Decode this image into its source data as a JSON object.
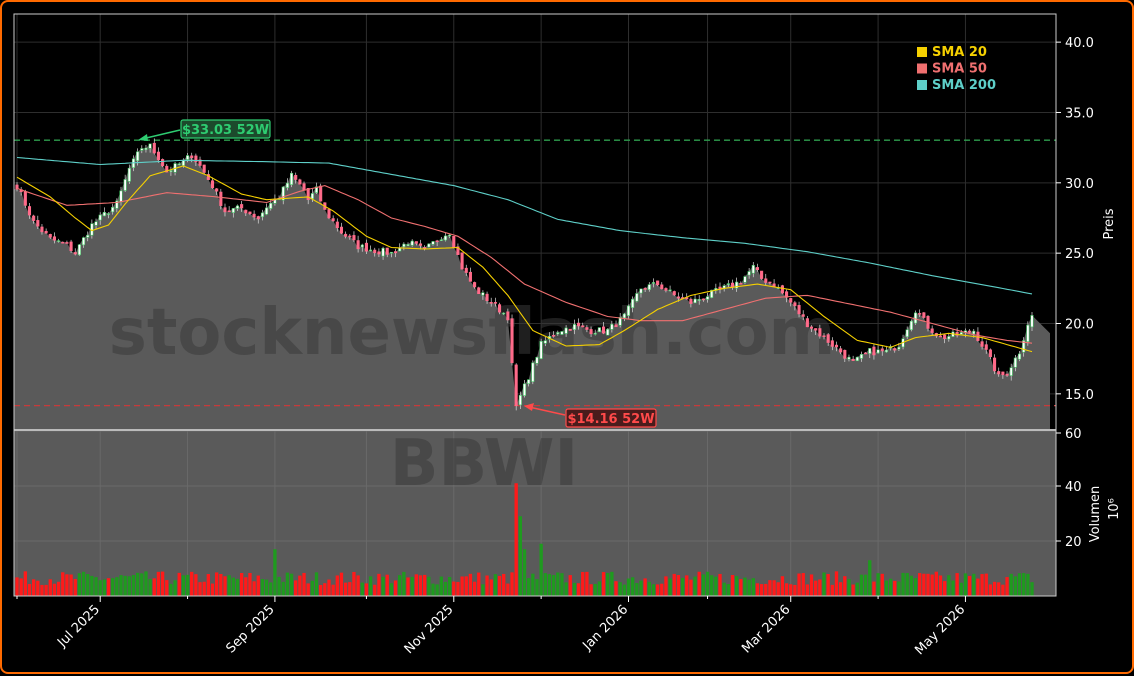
{
  "chart_data": {
    "type": "candlestick",
    "watermark": [
      "stocknewsflash.com",
      "BBWI"
    ],
    "price_axis": {
      "label": "Preis",
      "ylim": [
        12.5,
        42.0
      ],
      "ticks": [
        "40.0",
        "35.0",
        "30.0",
        "25.0",
        "20.0",
        "15.0"
      ]
    },
    "volume_axis": {
      "label": "Volumen",
      "unit": "10⁶",
      "ylim": [
        0,
        60
      ],
      "ticks": [
        "60",
        "40",
        "20"
      ]
    },
    "x_ticks": [
      "Jul 2025",
      "Sep 2025",
      "Nov 2025",
      "Jan 2026",
      "Mar 2026",
      "May 2026"
    ],
    "legend": [
      {
        "name": "SMA 20",
        "color": "#f5d000"
      },
      {
        "name": "SMA 50",
        "color": "#f07070"
      },
      {
        "name": "SMA 200",
        "color": "#5ecfc8"
      }
    ],
    "annotations": {
      "high": {
        "label": "$33.03 52W",
        "value": 33.03,
        "color": "#2ecc71"
      },
      "low": {
        "label": "$14.16 52W",
        "value": 14.16,
        "color": "#ff4a4a"
      }
    },
    "n_bars": 245,
    "price_keypoints": [
      [
        0,
        29.8
      ],
      [
        4,
        27.2
      ],
      [
        8,
        26.0
      ],
      [
        12,
        25.6
      ],
      [
        14,
        25.0
      ],
      [
        18,
        27.0
      ],
      [
        22,
        28.0
      ],
      [
        24,
        28.5
      ],
      [
        27,
        31.0
      ],
      [
        30,
        32.5
      ],
      [
        32,
        32.6
      ],
      [
        34,
        31.8
      ],
      [
        36,
        30.8
      ],
      [
        40,
        31.5
      ],
      [
        42,
        32.0
      ],
      [
        44,
        31.2
      ],
      [
        47,
        29.8
      ],
      [
        50,
        28.0
      ],
      [
        54,
        28.2
      ],
      [
        58,
        27.5
      ],
      [
        60,
        28.3
      ],
      [
        63,
        29.0
      ],
      [
        66,
        30.5
      ],
      [
        69,
        29.5
      ],
      [
        70,
        28.8
      ],
      [
        72,
        29.5
      ],
      [
        74,
        28.0
      ],
      [
        78,
        26.5
      ],
      [
        82,
        25.5
      ],
      [
        86,
        25.2
      ],
      [
        90,
        25.0
      ],
      [
        94,
        25.8
      ],
      [
        98,
        25.2
      ],
      [
        102,
        26.2
      ],
      [
        104,
        26.5
      ],
      [
        107,
        24.0
      ],
      [
        110,
        22.5
      ],
      [
        114,
        21.5
      ],
      [
        118,
        20.5
      ],
      [
        119,
        17.0
      ],
      [
        120,
        14.16
      ],
      [
        122,
        15.5
      ],
      [
        124,
        17.0
      ],
      [
        126,
        18.5
      ],
      [
        130,
        19.5
      ],
      [
        134,
        19.8
      ],
      [
        138,
        19.5
      ],
      [
        142,
        19.5
      ],
      [
        146,
        20.5
      ],
      [
        150,
        22.5
      ],
      [
        154,
        22.8
      ],
      [
        158,
        22.0
      ],
      [
        162,
        21.5
      ],
      [
        166,
        22.0
      ],
      [
        170,
        22.5
      ],
      [
        174,
        23.0
      ],
      [
        177,
        24.0
      ],
      [
        179,
        23.2
      ],
      [
        182,
        22.8
      ],
      [
        186,
        21.5
      ],
      [
        190,
        20.0
      ],
      [
        194,
        19.0
      ],
      [
        198,
        18.0
      ],
      [
        201,
        17.2
      ],
      [
        205,
        18.0
      ],
      [
        209,
        18.0
      ],
      [
        212,
        18.5
      ],
      [
        216,
        21.0
      ],
      [
        219,
        19.8
      ],
      [
        222,
        19.0
      ],
      [
        226,
        19.2
      ],
      [
        230,
        19.5
      ],
      [
        233,
        18.0
      ],
      [
        236,
        16.2
      ],
      [
        238,
        16.5
      ],
      [
        241,
        18.0
      ],
      [
        243,
        20.0
      ],
      [
        244,
        20.5
      ]
    ],
    "sma20_keypoints": [
      [
        0,
        30.4
      ],
      [
        8,
        29.0
      ],
      [
        14,
        27.5
      ],
      [
        18,
        26.6
      ],
      [
        22,
        27.0
      ],
      [
        26,
        28.5
      ],
      [
        32,
        30.5
      ],
      [
        40,
        31.2
      ],
      [
        46,
        30.5
      ],
      [
        54,
        29.2
      ],
      [
        60,
        28.8
      ],
      [
        70,
        29.0
      ],
      [
        76,
        28.0
      ],
      [
        84,
        26.2
      ],
      [
        90,
        25.4
      ],
      [
        98,
        25.3
      ],
      [
        106,
        25.4
      ],
      [
        112,
        24.0
      ],
      [
        118,
        22.0
      ],
      [
        124,
        19.5
      ],
      [
        132,
        18.4
      ],
      [
        140,
        18.5
      ],
      [
        146,
        19.5
      ],
      [
        154,
        21.0
      ],
      [
        162,
        22.0
      ],
      [
        170,
        22.5
      ],
      [
        178,
        22.8
      ],
      [
        186,
        22.4
      ],
      [
        194,
        20.5
      ],
      [
        202,
        18.8
      ],
      [
        210,
        18.3
      ],
      [
        216,
        19.0
      ],
      [
        224,
        19.3
      ],
      [
        232,
        19.0
      ],
      [
        238,
        18.5
      ],
      [
        244,
        18.0
      ]
    ],
    "sma50_keypoints": [
      [
        0,
        29.6
      ],
      [
        12,
        28.4
      ],
      [
        24,
        28.6
      ],
      [
        36,
        29.3
      ],
      [
        48,
        29.0
      ],
      [
        60,
        28.6
      ],
      [
        68,
        29.4
      ],
      [
        74,
        29.8
      ],
      [
        82,
        28.8
      ],
      [
        90,
        27.5
      ],
      [
        98,
        26.9
      ],
      [
        106,
        26.2
      ],
      [
        114,
        24.7
      ],
      [
        122,
        22.8
      ],
      [
        132,
        21.5
      ],
      [
        142,
        20.5
      ],
      [
        150,
        20.2
      ],
      [
        160,
        20.2
      ],
      [
        170,
        21.0
      ],
      [
        180,
        21.8
      ],
      [
        190,
        22.0
      ],
      [
        200,
        21.4
      ],
      [
        210,
        20.8
      ],
      [
        220,
        20.0
      ],
      [
        230,
        19.2
      ],
      [
        238,
        18.8
      ],
      [
        244,
        18.6
      ]
    ],
    "sma200_keypoints": [
      [
        0,
        31.8
      ],
      [
        20,
        31.3
      ],
      [
        40,
        31.6
      ],
      [
        60,
        31.5
      ],
      [
        75,
        31.4
      ],
      [
        90,
        30.6
      ],
      [
        105,
        29.8
      ],
      [
        118,
        28.8
      ],
      [
        130,
        27.4
      ],
      [
        145,
        26.6
      ],
      [
        160,
        26.1
      ],
      [
        175,
        25.7
      ],
      [
        190,
        25.1
      ],
      [
        205,
        24.3
      ],
      [
        220,
        23.4
      ],
      [
        235,
        22.6
      ],
      [
        244,
        22.1
      ]
    ],
    "volume_spikes": [
      [
        62,
        17
      ],
      [
        120,
        41
      ],
      [
        121,
        29
      ],
      [
        122,
        17
      ],
      [
        126,
        19
      ],
      [
        205,
        13
      ]
    ]
  }
}
